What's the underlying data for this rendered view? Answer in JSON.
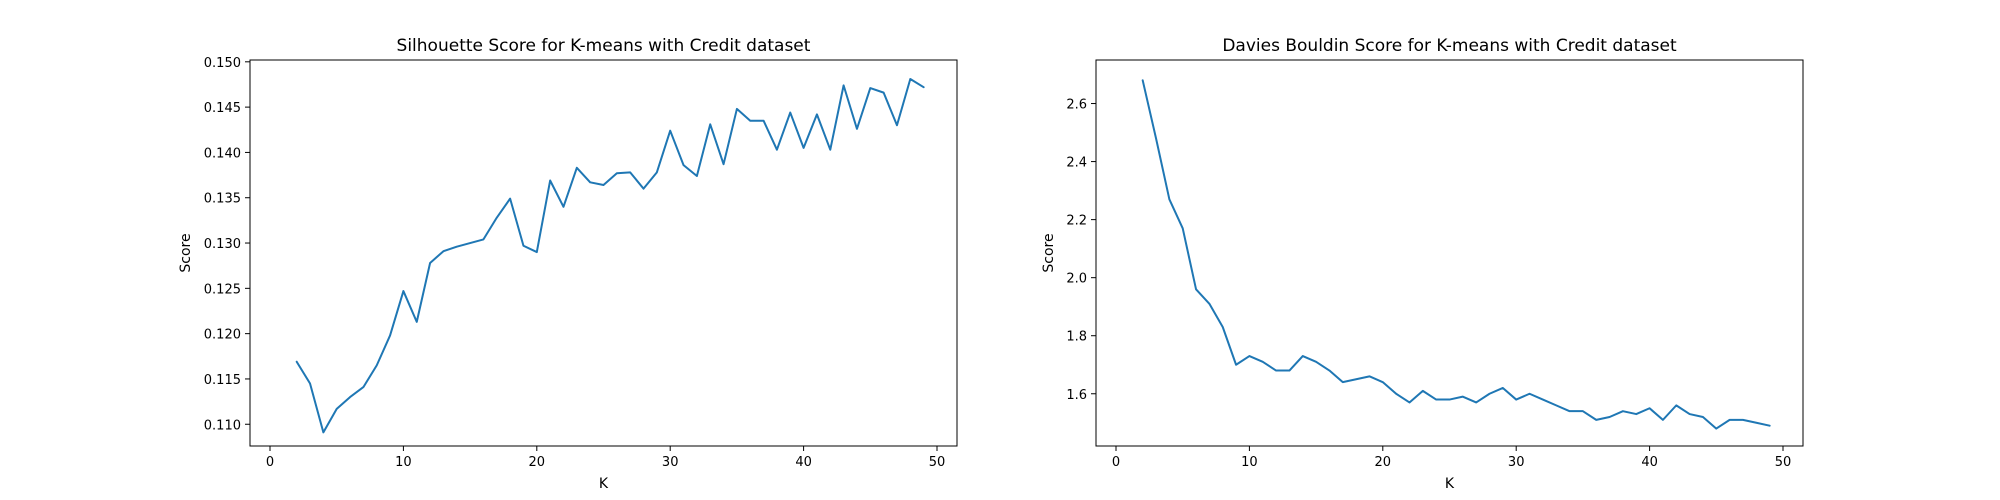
{
  "chart_data": [
    {
      "type": "line",
      "title": "Silhouette Score for K-means with Credit dataset",
      "xlabel": "K",
      "ylabel": "Score",
      "xlim": [
        -1.5,
        51.5
      ],
      "ylim": [
        0.1076,
        0.1502
      ],
      "xticks": [
        0,
        10,
        20,
        30,
        40,
        50
      ],
      "xtick_labels": [
        "0",
        "10",
        "20",
        "30",
        "40",
        "50"
      ],
      "yticks": [
        0.11,
        0.115,
        0.12,
        0.125,
        0.13,
        0.135,
        0.14,
        0.145,
        0.15
      ],
      "ytick_labels": [
        "0.110",
        "0.115",
        "0.120",
        "0.125",
        "0.130",
        "0.135",
        "0.140",
        "0.145",
        "0.150"
      ],
      "grid": false,
      "series": [
        {
          "color": "#1f77b4",
          "x": [
            2,
            3,
            4,
            5,
            6,
            7,
            8,
            9,
            10,
            11,
            12,
            13,
            14,
            15,
            16,
            17,
            18,
            19,
            20,
            21,
            22,
            23,
            24,
            25,
            26,
            27,
            28,
            29,
            30,
            31,
            32,
            33,
            34,
            35,
            36,
            37,
            38,
            39,
            40,
            41,
            42,
            43,
            44,
            45,
            46,
            47,
            48,
            49
          ],
          "y": [
            0.1169,
            0.1145,
            0.1091,
            0.1117,
            0.113,
            0.1141,
            0.1165,
            0.1198,
            0.1247,
            0.1213,
            0.1278,
            0.1291,
            0.1296,
            0.13,
            0.1304,
            0.1328,
            0.1349,
            0.1297,
            0.129,
            0.1369,
            0.134,
            0.1383,
            0.1367,
            0.1364,
            0.1377,
            0.1378,
            0.136,
            0.1378,
            0.1424,
            0.1386,
            0.1374,
            0.1431,
            0.1387,
            0.1448,
            0.1435,
            0.1435,
            0.1403,
            0.1444,
            0.1405,
            0.1442,
            0.1403,
            0.1474,
            0.1426,
            0.1471,
            0.1466,
            0.143,
            0.1481,
            0.1472
          ]
        }
      ]
    },
    {
      "type": "line",
      "title": "Davies Bouldin Score for K-means with Credit dataset",
      "xlabel": "K",
      "ylabel": "Score",
      "xlim": [
        -1.5,
        51.5
      ],
      "ylim": [
        1.42,
        2.75
      ],
      "xticks": [
        0,
        10,
        20,
        30,
        40,
        50
      ],
      "xtick_labels": [
        "0",
        "10",
        "20",
        "30",
        "40",
        "50"
      ],
      "yticks": [
        1.6,
        1.8,
        2.0,
        2.2,
        2.4,
        2.6
      ],
      "ytick_labels": [
        "1.6",
        "1.8",
        "2.0",
        "2.2",
        "2.4",
        "2.6"
      ],
      "grid": false,
      "series": [
        {
          "color": "#1f77b4",
          "x": [
            2,
            3,
            4,
            5,
            6,
            7,
            8,
            9,
            10,
            11,
            12,
            13,
            14,
            15,
            16,
            17,
            18,
            19,
            20,
            21,
            22,
            23,
            24,
            25,
            26,
            27,
            28,
            29,
            30,
            31,
            32,
            33,
            34,
            35,
            36,
            37,
            38,
            39,
            40,
            41,
            42,
            43,
            44,
            45,
            46,
            47,
            48,
            49
          ],
          "y": [
            2.68,
            2.48,
            2.27,
            2.17,
            1.96,
            1.91,
            1.83,
            1.7,
            1.73,
            1.71,
            1.68,
            1.68,
            1.73,
            1.71,
            1.68,
            1.64,
            1.65,
            1.66,
            1.64,
            1.6,
            1.57,
            1.61,
            1.58,
            1.58,
            1.59,
            1.57,
            1.6,
            1.62,
            1.58,
            1.6,
            1.58,
            1.56,
            1.54,
            1.54,
            1.51,
            1.52,
            1.54,
            1.53,
            1.55,
            1.51,
            1.56,
            1.53,
            1.52,
            1.48,
            1.51,
            1.51,
            1.5,
            1.49
          ]
        }
      ]
    }
  ]
}
